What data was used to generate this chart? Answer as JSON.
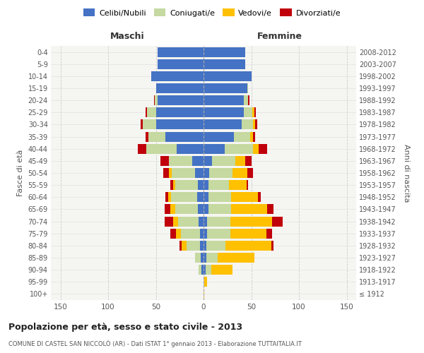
{
  "age_groups": [
    "100+",
    "95-99",
    "90-94",
    "85-89",
    "80-84",
    "75-79",
    "70-74",
    "65-69",
    "60-64",
    "55-59",
    "50-54",
    "45-49",
    "40-44",
    "35-39",
    "30-34",
    "25-29",
    "20-24",
    "15-19",
    "10-14",
    "5-9",
    "0-4"
  ],
  "birth_years": [
    "≤ 1912",
    "1913-1917",
    "1918-1922",
    "1923-1927",
    "1928-1932",
    "1933-1937",
    "1938-1942",
    "1943-1947",
    "1948-1952",
    "1953-1957",
    "1958-1962",
    "1963-1967",
    "1968-1972",
    "1973-1977",
    "1978-1982",
    "1983-1987",
    "1988-1992",
    "1993-1997",
    "1998-2002",
    "2003-2007",
    "2008-2012"
  ],
  "maschi_celibi": [
    0,
    0,
    2,
    3,
    4,
    4,
    5,
    6,
    7,
    6,
    9,
    12,
    28,
    40,
    50,
    50,
    48,
    50,
    55,
    48,
    48
  ],
  "maschi_coniugati": [
    0,
    0,
    3,
    6,
    14,
    20,
    22,
    24,
    27,
    24,
    24,
    24,
    32,
    18,
    14,
    9,
    3,
    0,
    0,
    0,
    0
  ],
  "maschi_vedovi": [
    0,
    0,
    0,
    0,
    5,
    5,
    5,
    5,
    3,
    2,
    3,
    0,
    0,
    0,
    0,
    0,
    0,
    0,
    0,
    0,
    0
  ],
  "maschi_divorziati": [
    0,
    0,
    0,
    0,
    2,
    6,
    9,
    6,
    3,
    3,
    6,
    9,
    9,
    3,
    2,
    2,
    1,
    0,
    0,
    0,
    0
  ],
  "femmine_nubili": [
    0,
    0,
    2,
    3,
    3,
    4,
    4,
    5,
    5,
    5,
    6,
    9,
    22,
    32,
    40,
    42,
    42,
    46,
    50,
    44,
    44
  ],
  "femmine_coniugate": [
    0,
    1,
    6,
    12,
    20,
    24,
    24,
    24,
    24,
    22,
    24,
    24,
    30,
    17,
    12,
    9,
    5,
    1,
    0,
    0,
    0
  ],
  "femmine_vedove": [
    1,
    3,
    22,
    38,
    48,
    38,
    44,
    38,
    28,
    18,
    16,
    11,
    6,
    3,
    2,
    2,
    0,
    0,
    0,
    0,
    0
  ],
  "femmine_divorziate": [
    0,
    0,
    0,
    0,
    2,
    6,
    11,
    6,
    3,
    2,
    6,
    6,
    9,
    2,
    2,
    2,
    1,
    0,
    0,
    0,
    0
  ],
  "colors": {
    "celibi": "#4472c4",
    "coniugati": "#c5d9a0",
    "vedovi": "#ffc000",
    "divorziati": "#c0000b"
  },
  "xlim": 160,
  "title": "Popolazione per età, sesso e stato civile - 2013",
  "subtitle": "COMUNE DI CASTEL SAN NICCOLÒ (AR) - Dati ISTAT 1° gennaio 2013 - Elaborazione TUTTAITALIA.IT",
  "xlabel_left": "Maschi",
  "xlabel_right": "Femmine",
  "ylabel_left": "Fasce di età",
  "ylabel_right": "Anni di nascita",
  "legend_labels": [
    "Celibi/Nubili",
    "Coniugati/e",
    "Vedovi/e",
    "Divorziati/e"
  ]
}
